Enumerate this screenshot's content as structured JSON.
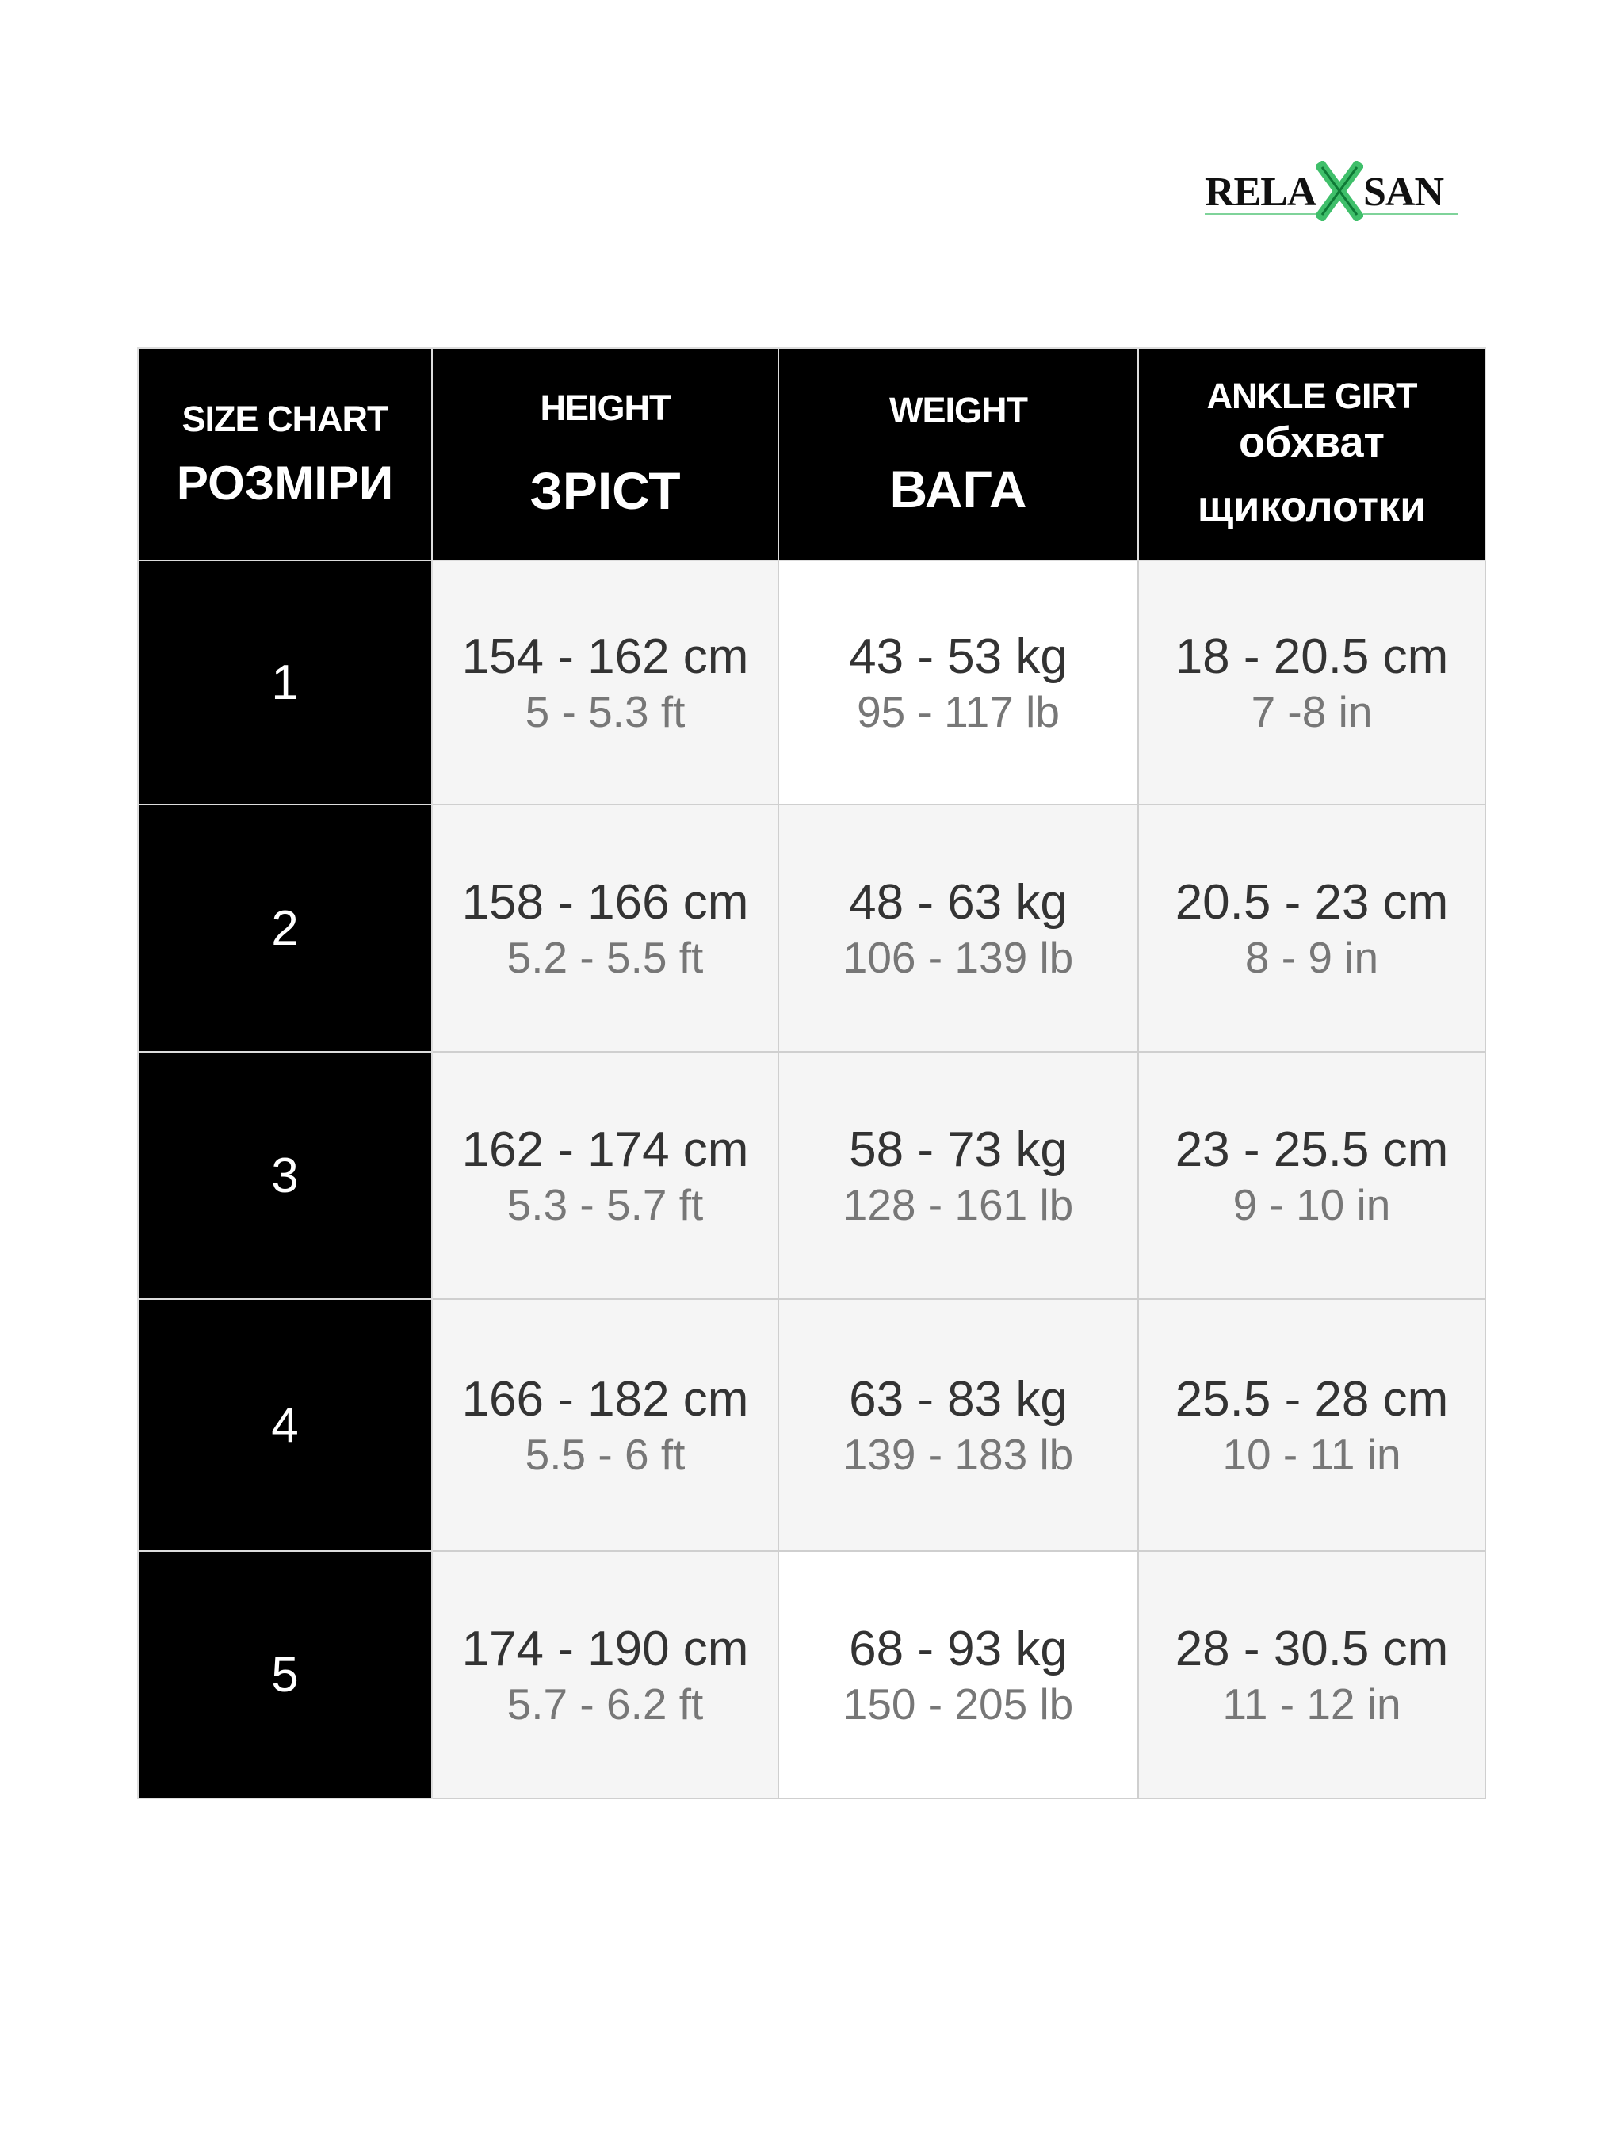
{
  "logo": {
    "text_left": "RELA",
    "text_right": "SAN",
    "accent_color": "#3fbf6a"
  },
  "header": {
    "size": {
      "en": "SIZE CHART",
      "ua": "РОЗМІРИ"
    },
    "height": {
      "en": "HEIGHT",
      "ua": "ЗРІСТ"
    },
    "weight": {
      "en": "WEIGHT",
      "ua": "ВАГА"
    },
    "ankle": {
      "en": "ANKLE GIRT",
      "ua1": "обхват",
      "ua2": "щиколотки"
    }
  },
  "rows": [
    {
      "size": "1",
      "height_cm": "154 - 162 cm",
      "height_ft": "5 - 5.3 ft",
      "weight_kg": "43 - 53 kg",
      "weight_lb": "95 - 117 lb",
      "ankle_cm": "18 - 20.5 cm",
      "ankle_in": "7 -8 in"
    },
    {
      "size": "2",
      "height_cm": "158 - 166 cm",
      "height_ft": "5.2 - 5.5 ft",
      "weight_kg": "48 - 63 kg",
      "weight_lb": "106 - 139 lb",
      "ankle_cm": "20.5 - 23 cm",
      "ankle_in": "8 - 9 in"
    },
    {
      "size": "3",
      "height_cm": "162 - 174 cm",
      "height_ft": "5.3 - 5.7 ft",
      "weight_kg": "58 - 73 kg",
      "weight_lb": "128 - 161 lb",
      "ankle_cm": "23 - 25.5 cm",
      "ankle_in": "9 - 10 in"
    },
    {
      "size": "4",
      "height_cm": "166 - 182 cm",
      "height_ft": "5.5 - 6 ft",
      "weight_kg": "63 - 83 kg",
      "weight_lb": "139 - 183 lb",
      "ankle_cm": "25.5 - 28 cm",
      "ankle_in": "10 - 11 in"
    },
    {
      "size": "5",
      "height_cm": "174 - 190 cm",
      "height_ft": "5.7 - 6.2 ft",
      "weight_kg": "68 - 93 kg",
      "weight_lb": "150 - 205 lb",
      "ankle_cm": "28 - 30.5 cm",
      "ankle_in": "11 - 12 in"
    }
  ]
}
